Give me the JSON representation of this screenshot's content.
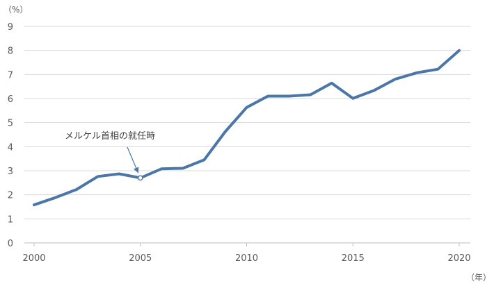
{
  "chart_data": {
    "type": "line",
    "title": "",
    "y_unit_label": "（%）",
    "x_unit_label": "（年）",
    "ylim": [
      0,
      9
    ],
    "yticks": [
      "0",
      "1",
      "2",
      "3",
      "4",
      "5",
      "6",
      "7",
      "8",
      "9"
    ],
    "xlim": [
      2000,
      2020
    ],
    "xticks": [
      "2000",
      "2005",
      "2010",
      "2015",
      "2020"
    ],
    "grid": true,
    "legend": "none",
    "series": [
      {
        "color": "#4a76a8",
        "x": [
          2000,
          2001,
          2002,
          2003,
          2004,
          2005,
          2006,
          2007,
          2008,
          2009,
          2010,
          2011,
          2012,
          2013,
          2014,
          2015,
          2016,
          2017,
          2018,
          2019,
          2020
        ],
        "y": [
          1.58,
          1.88,
          2.22,
          2.76,
          2.87,
          2.7,
          3.08,
          3.1,
          3.45,
          4.63,
          5.63,
          6.1,
          6.1,
          6.16,
          6.64,
          6.01,
          6.34,
          6.81,
          7.07,
          7.22,
          8.0
        ]
      }
    ],
    "annotations": [
      {
        "text": "メルケル首相の就任時",
        "x": 2005,
        "y": 2.7
      }
    ]
  }
}
